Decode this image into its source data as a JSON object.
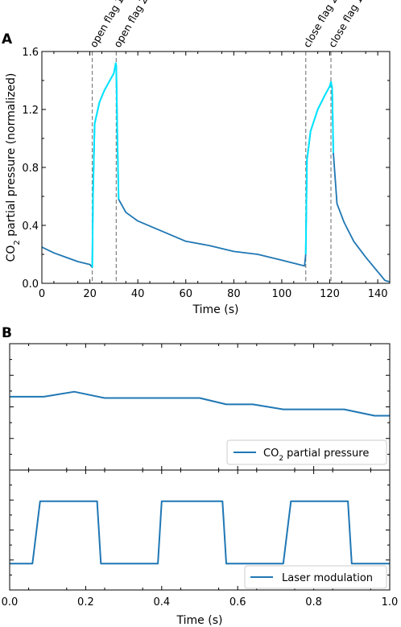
{
  "chart_data": [
    {
      "panel_label": "A",
      "type": "line",
      "xlabel": "Time (s)",
      "ylabel_prefix": "CO",
      "ylabel_sub": "2",
      "ylabel_suffix": " partial pressure (normalized)",
      "xlim": [
        0,
        145
      ],
      "ylim": [
        0,
        1.6
      ],
      "xticks": [
        "0",
        "20",
        "40",
        "60",
        "80",
        "100",
        "120",
        "140"
      ],
      "yticks": [
        "0.0",
        "0.4",
        "0.8",
        "1.2",
        "1.6"
      ],
      "colors": {
        "main": "#1f77b4",
        "highlight": "#00e5ff",
        "vline": "#808080"
      },
      "annotations": [
        {
          "x": 21,
          "label": "open flag 1"
        },
        {
          "x": 31,
          "label": "open flag 2"
        },
        {
          "x": 110,
          "label": "close flag 2"
        },
        {
          "x": 120.5,
          "label": "close flag 1"
        }
      ],
      "series": [
        {
          "style": "main",
          "x": [
            0,
            5,
            10,
            15,
            20,
            21,
            21.3,
            22,
            24,
            26,
            28,
            30,
            30.8,
            31,
            31.5,
            32,
            35,
            40,
            50,
            60,
            70,
            80,
            90,
            100,
            109.5,
            110,
            110.5,
            112,
            115,
            118,
            120,
            120.5,
            121,
            121.5,
            123,
            126,
            130,
            135,
            140,
            142,
            143,
            145
          ],
          "y": [
            0.25,
            0.21,
            0.18,
            0.15,
            0.13,
            0.11,
            0.6,
            1.1,
            1.25,
            1.33,
            1.39,
            1.45,
            1.52,
            1.5,
            1.0,
            0.58,
            0.49,
            0.43,
            0.36,
            0.29,
            0.26,
            0.22,
            0.2,
            0.16,
            0.12,
            0.2,
            0.85,
            1.05,
            1.2,
            1.3,
            1.36,
            1.39,
            1.35,
            0.9,
            0.55,
            0.42,
            0.29,
            0.18,
            0.08,
            0.04,
            0.02,
            0.01
          ]
        },
        {
          "style": "highlight",
          "x": [
            21,
            21.3,
            22,
            24,
            26,
            28,
            30,
            30.8,
            31,
            31.5,
            32
          ],
          "y": [
            0.11,
            0.6,
            1.1,
            1.25,
            1.33,
            1.39,
            1.45,
            1.52,
            1.5,
            1.0,
            0.58
          ]
        },
        {
          "style": "highlight",
          "x": [
            110,
            110.5,
            112,
            115,
            118,
            120,
            120.5,
            121,
            121.5
          ],
          "y": [
            0.2,
            0.85,
            1.05,
            1.2,
            1.3,
            1.36,
            1.39,
            1.35,
            0.9
          ]
        }
      ]
    },
    {
      "panel_label": "B",
      "type": "line",
      "xlabel": "Time (s)",
      "xlim": [
        0,
        1.0
      ],
      "xticks": [
        "0.0",
        "0.2",
        "0.4",
        "0.6",
        "0.8",
        "1.0"
      ],
      "subplots": [
        {
          "legend_prefix": "CO",
          "legend_sub": "2",
          "legend_suffix": " partial pressure",
          "legend_position": "lower-right",
          "color": "#1f77b4",
          "ylim": [
            0,
            1
          ],
          "x": [
            0,
            0.09,
            0.17,
            0.25,
            0.5,
            0.57,
            0.64,
            0.72,
            0.88,
            0.96,
            1.0
          ],
          "y": [
            0.58,
            0.58,
            0.62,
            0.57,
            0.57,
            0.52,
            0.52,
            0.48,
            0.48,
            0.43,
            0.43
          ]
        },
        {
          "legend": "Laser modulation",
          "legend_position": "lower-right",
          "color": "#1f77b4",
          "ylim": [
            0,
            1
          ],
          "x": [
            0,
            0.06,
            0.08,
            0.23,
            0.24,
            0.39,
            0.4,
            0.56,
            0.57,
            0.72,
            0.74,
            0.89,
            0.9,
            1.0
          ],
          "y": [
            0.22,
            0.22,
            0.74,
            0.74,
            0.22,
            0.22,
            0.74,
            0.74,
            0.22,
            0.22,
            0.74,
            0.74,
            0.22,
            0.22
          ]
        }
      ]
    }
  ]
}
